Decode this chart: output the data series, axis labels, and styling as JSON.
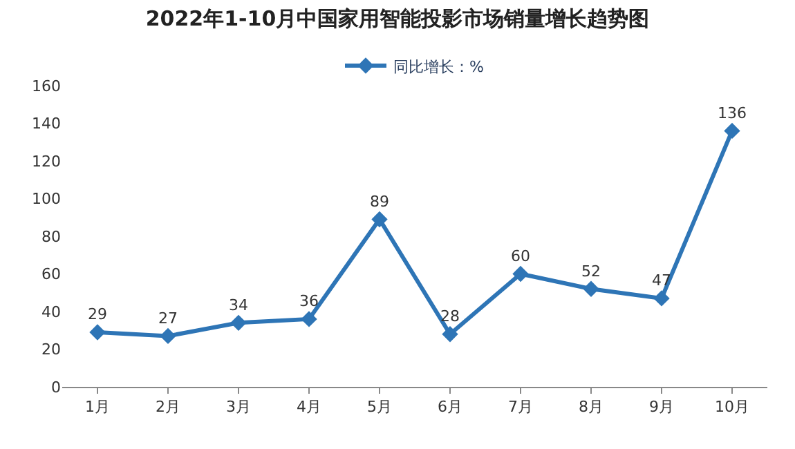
{
  "chart_data": {
    "type": "line",
    "title": "2022年1-10月中国家用智能投影市场销量增长趋势图",
    "categories": [
      "1月",
      "2月",
      "3月",
      "4月",
      "5月",
      "6月",
      "7月",
      "8月",
      "9月",
      "10月"
    ],
    "series": [
      {
        "name": "同比增长：%",
        "color": "#2e75b6",
        "values": [
          29,
          27,
          34,
          36,
          89,
          28,
          60,
          52,
          47,
          136
        ]
      }
    ],
    "ylim": [
      0,
      160
    ],
    "yticks": [
      0,
      20,
      40,
      60,
      80,
      100,
      120,
      140,
      160
    ],
    "grid": false,
    "legend": "top",
    "marker": "diamond",
    "line_style": "solid",
    "data_labels": true
  }
}
